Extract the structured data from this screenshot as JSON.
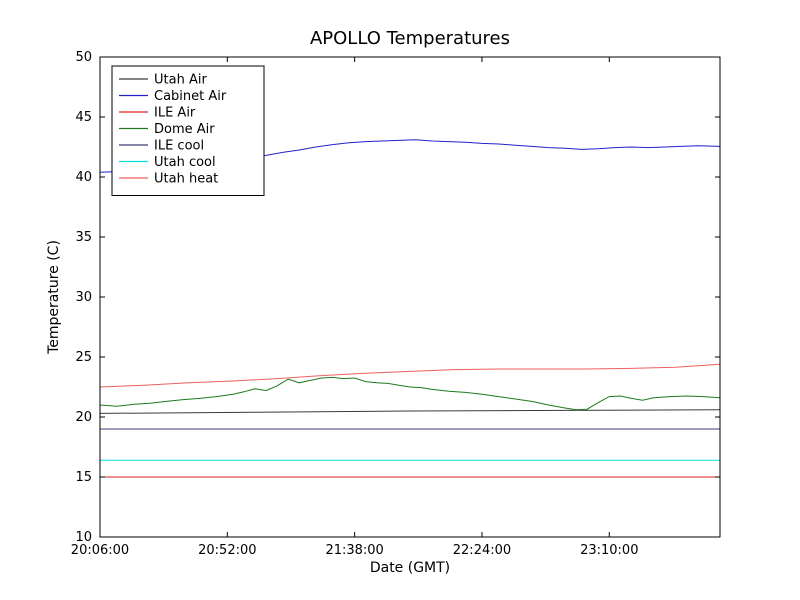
{
  "chart_data": {
    "type": "line",
    "title": "APOLLO Temperatures",
    "xlabel": "Date (GMT)",
    "ylabel": "Temperature (C)",
    "x_unit": "minutes since 20:06:00 GMT",
    "xlim": [
      0,
      224
    ],
    "ylim": [
      10,
      50
    ],
    "grid": false,
    "legend_position": "upper left",
    "y_ticks": [
      10,
      15,
      20,
      25,
      30,
      35,
      40,
      45,
      50
    ],
    "x_ticks": [
      {
        "pos": 0,
        "label": "20:06:00"
      },
      {
        "pos": 46,
        "label": "20:52:00"
      },
      {
        "pos": 92,
        "label": "21:38:00"
      },
      {
        "pos": 138,
        "label": "22:24:00"
      },
      {
        "pos": 184,
        "label": "23:10:00"
      }
    ],
    "series": [
      {
        "name": "Utah Air",
        "color": "#3a3a3a",
        "points": [
          [
            0,
            20.3
          ],
          [
            56,
            20.4
          ],
          [
            112,
            20.5
          ],
          [
            168,
            20.55
          ],
          [
            224,
            20.6
          ]
        ]
      },
      {
        "name": "Cabinet Air",
        "color": "#2222cc",
        "points": [
          [
            0,
            40.4
          ],
          [
            6,
            40.45
          ],
          [
            12,
            40.55
          ],
          [
            18,
            40.7
          ],
          [
            24,
            40.85
          ],
          [
            30,
            41.0
          ],
          [
            36,
            41.1
          ],
          [
            42,
            41.25
          ],
          [
            48,
            41.4
          ],
          [
            54,
            41.6
          ],
          [
            60,
            41.8
          ],
          [
            66,
            42.05
          ],
          [
            72,
            42.25
          ],
          [
            78,
            42.5
          ],
          [
            84,
            42.7
          ],
          [
            90,
            42.85
          ],
          [
            96,
            42.95
          ],
          [
            102,
            43.0
          ],
          [
            108,
            43.05
          ],
          [
            114,
            43.1
          ],
          [
            120,
            43.0
          ],
          [
            126,
            42.95
          ],
          [
            132,
            42.9
          ],
          [
            138,
            42.8
          ],
          [
            144,
            42.75
          ],
          [
            150,
            42.65
          ],
          [
            156,
            42.55
          ],
          [
            162,
            42.45
          ],
          [
            168,
            42.4
          ],
          [
            174,
            42.3
          ],
          [
            180,
            42.35
          ],
          [
            186,
            42.45
          ],
          [
            192,
            42.5
          ],
          [
            198,
            42.45
          ],
          [
            204,
            42.5
          ],
          [
            210,
            42.55
          ],
          [
            216,
            42.6
          ],
          [
            224,
            42.55
          ]
        ]
      },
      {
        "name": "ILE Air",
        "color": "#dd2222",
        "points": [
          [
            0,
            15.0
          ],
          [
            224,
            15.0
          ]
        ]
      },
      {
        "name": "Dome Air",
        "color": "#1f7a1f",
        "points": [
          [
            0,
            21.0
          ],
          [
            6,
            20.9
          ],
          [
            12,
            21.05
          ],
          [
            18,
            21.15
          ],
          [
            24,
            21.3
          ],
          [
            30,
            21.45
          ],
          [
            36,
            21.55
          ],
          [
            42,
            21.7
          ],
          [
            48,
            21.9
          ],
          [
            52,
            22.1
          ],
          [
            56,
            22.35
          ],
          [
            60,
            22.2
          ],
          [
            64,
            22.6
          ],
          [
            68,
            23.15
          ],
          [
            72,
            22.85
          ],
          [
            76,
            23.05
          ],
          [
            80,
            23.25
          ],
          [
            84,
            23.3
          ],
          [
            88,
            23.2
          ],
          [
            92,
            23.25
          ],
          [
            96,
            22.95
          ],
          [
            100,
            22.85
          ],
          [
            104,
            22.8
          ],
          [
            108,
            22.65
          ],
          [
            112,
            22.5
          ],
          [
            116,
            22.45
          ],
          [
            120,
            22.3
          ],
          [
            126,
            22.15
          ],
          [
            132,
            22.05
          ],
          [
            138,
            21.9
          ],
          [
            144,
            21.7
          ],
          [
            150,
            21.5
          ],
          [
            156,
            21.3
          ],
          [
            162,
            21.0
          ],
          [
            168,
            20.75
          ],
          [
            172,
            20.6
          ],
          [
            176,
            20.65
          ],
          [
            180,
            21.2
          ],
          [
            184,
            21.7
          ],
          [
            188,
            21.75
          ],
          [
            192,
            21.55
          ],
          [
            196,
            21.4
          ],
          [
            200,
            21.6
          ],
          [
            206,
            21.7
          ],
          [
            212,
            21.75
          ],
          [
            218,
            21.7
          ],
          [
            224,
            21.6
          ]
        ]
      },
      {
        "name": "ILE cool",
        "color": "#3c3c78",
        "points": [
          [
            0,
            19.0
          ],
          [
            224,
            19.0
          ]
        ]
      },
      {
        "name": "Utah cool",
        "color": "#00e0e0",
        "points": [
          [
            0,
            16.4
          ],
          [
            224,
            16.4
          ]
        ]
      },
      {
        "name": "Utah heat",
        "color": "#ee6060",
        "points": [
          [
            0,
            22.5
          ],
          [
            16,
            22.65
          ],
          [
            32,
            22.85
          ],
          [
            48,
            23.0
          ],
          [
            64,
            23.2
          ],
          [
            80,
            23.45
          ],
          [
            96,
            23.65
          ],
          [
            112,
            23.8
          ],
          [
            128,
            23.95
          ],
          [
            144,
            24.0
          ],
          [
            160,
            24.0
          ],
          [
            176,
            24.0
          ],
          [
            192,
            24.05
          ],
          [
            208,
            24.15
          ],
          [
            224,
            24.4
          ]
        ]
      }
    ]
  }
}
